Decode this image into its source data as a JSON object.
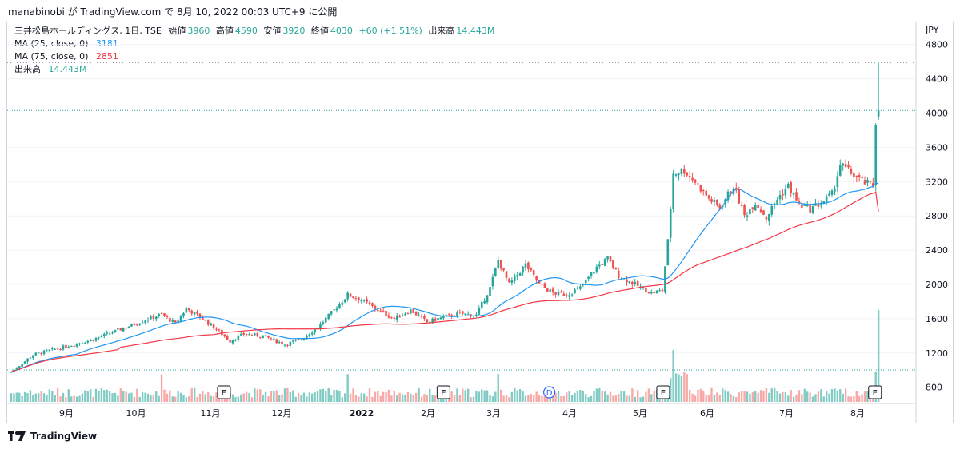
{
  "header": {
    "text": "manabinobi が TradingView.com で 8月 10, 2022 00:03 UTC+9 に公開"
  },
  "legend": {
    "line1": {
      "symbol": "三井松島ホールディングス, 1日, TSE",
      "open_label": "始値",
      "open": "3960",
      "high_label": "高値",
      "high": "4590",
      "low_label": "安値",
      "low": "3920",
      "close_label": "終値",
      "close": "4030",
      "change": "+60 (+1.51%)",
      "vol_label": "出来高",
      "vol": "14.443M"
    },
    "ma25": {
      "label": "MA (25, close, 0)",
      "value": "3181"
    },
    "ma75": {
      "label": "MA (75, close, 0)",
      "value": "2851"
    },
    "volume": {
      "label": "出来高",
      "value": "14.443M"
    }
  },
  "footer": {
    "brand": "TradingView"
  },
  "colors": {
    "up": "#26a69a",
    "down": "#ef5350",
    "ma25": "#2196f3",
    "ma75": "#f23645",
    "vol_up": "#80cbc4",
    "vol_down": "#f7a9a7",
    "grid": "#f0f3fa",
    "text": "#131722"
  },
  "chart_data": {
    "type": "candlestick",
    "currency": "JPY",
    "y_ticks": [
      800,
      1200,
      1600,
      2000,
      2400,
      2800,
      3200,
      3600,
      4000,
      4400,
      4800
    ],
    "ylim": [
      500,
      4850
    ],
    "x_labels": [
      "9月",
      "10月",
      "11月",
      "12月",
      "2022",
      "2月",
      "3月",
      "4月",
      "5月",
      "6月",
      "7月",
      "8月"
    ],
    "events": [
      {
        "label": "E",
        "month": "11月",
        "offset_days": 5
      },
      {
        "label": "E",
        "month": "2月",
        "offset_days": 6
      },
      {
        "label": "D",
        "month": "3月",
        "offset_days": 27
      },
      {
        "label": "E",
        "month": "5月",
        "offset_days": 10
      },
      {
        "label": "E",
        "month": "8月",
        "offset_days": 7
      }
    ],
    "close_path": [
      [
        0,
        980
      ],
      [
        8,
        1180
      ],
      [
        18,
        1260
      ],
      [
        30,
        1360
      ],
      [
        42,
        1500
      ],
      [
        50,
        1600
      ],
      [
        55,
        1650
      ],
      [
        60,
        1540
      ],
      [
        64,
        1720
      ],
      [
        70,
        1600
      ],
      [
        74,
        1500
      ],
      [
        80,
        1340
      ],
      [
        85,
        1420
      ],
      [
        92,
        1400
      ],
      [
        100,
        1300
      ],
      [
        106,
        1360
      ],
      [
        112,
        1500
      ],
      [
        118,
        1700
      ],
      [
        123,
        1880
      ],
      [
        128,
        1820
      ],
      [
        134,
        1700
      ],
      [
        140,
        1600
      ],
      [
        146,
        1700
      ],
      [
        152,
        1560
      ],
      [
        158,
        1620
      ],
      [
        164,
        1660
      ],
      [
        170,
        1640
      ],
      [
        175,
        1960
      ],
      [
        178,
        2280
      ],
      [
        182,
        2000
      ],
      [
        188,
        2230
      ],
      [
        193,
        2000
      ],
      [
        198,
        1900
      ],
      [
        203,
        1880
      ],
      [
        208,
        1960
      ],
      [
        214,
        2200
      ],
      [
        218,
        2300
      ],
      [
        222,
        2100
      ],
      [
        228,
        2000
      ],
      [
        234,
        1900
      ],
      [
        238,
        1930
      ],
      [
        240,
        2500
      ],
      [
        242,
        3300
      ],
      [
        246,
        3330
      ],
      [
        250,
        3200
      ],
      [
        255,
        3000
      ],
      [
        259,
        2900
      ],
      [
        264,
        3150
      ],
      [
        268,
        2800
      ],
      [
        272,
        2960
      ],
      [
        276,
        2780
      ],
      [
        280,
        3000
      ],
      [
        284,
        3150
      ],
      [
        288,
        2930
      ],
      [
        292,
        2880
      ],
      [
        296,
        2950
      ],
      [
        300,
        3050
      ],
      [
        303,
        3400
      ],
      [
        307,
        3300
      ],
      [
        311,
        3200
      ],
      [
        315,
        3150
      ],
      [
        316,
        3900
      ],
      [
        317,
        4030
      ]
    ],
    "ma25_value": 3181,
    "ma75_value": 2851,
    "last_close": 4030,
    "last_high": 4590,
    "last_volume": "14.443M"
  }
}
